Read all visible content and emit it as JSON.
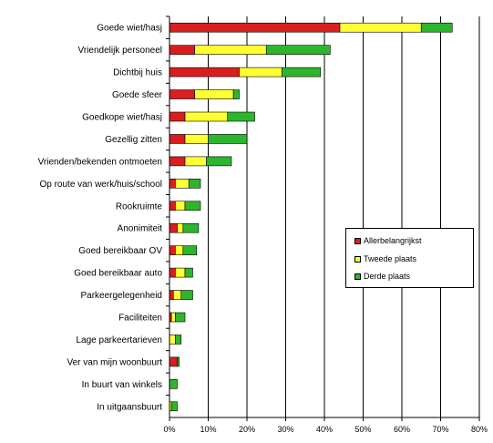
{
  "chart_data": {
    "type": "bar",
    "orientation": "horizontal",
    "stacked": true,
    "categories": [
      "Goede wiet/hasj",
      "Vriendelijk personeel",
      "Dichtbij huis",
      "Goede sfeer",
      "Goedkope wiet/hasj",
      "Gezellig zitten",
      "Vrienden/bekenden ontmoeten",
      "Op route van werk/huis/school",
      "Rookruimte",
      "Anonimiteit",
      "Goed bereikbaar OV",
      "Goed bereikbaar auto",
      "Parkeergelegenheid",
      "Faciliteiten",
      "Lage parkeertarieven",
      "Ver van mijn woonbuurt",
      "In buurt van winkels",
      "In uitgaansbuurt"
    ],
    "series": [
      {
        "name": "Allerbelangrijkst",
        "color": "#d91e1e",
        "values": [
          44,
          6.5,
          18,
          6.5,
          4,
          4,
          4,
          1.5,
          1.5,
          2,
          1.5,
          1.5,
          1,
          0.5,
          0,
          2,
          0,
          0
        ]
      },
      {
        "name": "Tweede plaats",
        "color": "#ffff33",
        "values": [
          21,
          18.5,
          11,
          10,
          11,
          6,
          5.5,
          3.5,
          2.5,
          1.5,
          2,
          2.5,
          2,
          1,
          1.5,
          0,
          0,
          0.5
        ]
      },
      {
        "name": "Derde plaats",
        "color": "#2db52d",
        "values": [
          8,
          16.5,
          10,
          1.5,
          7,
          10,
          6.5,
          3,
          4,
          4,
          3.5,
          2,
          3,
          2.5,
          1.5,
          0.5,
          2,
          1.5
        ]
      }
    ],
    "xlim": [
      0,
      80
    ],
    "x_ticks": [
      "0%",
      "10%",
      "20%",
      "30%",
      "40%",
      "50%",
      "60%",
      "70%",
      "80%"
    ],
    "grid": true,
    "legend_position": "right-middle"
  }
}
